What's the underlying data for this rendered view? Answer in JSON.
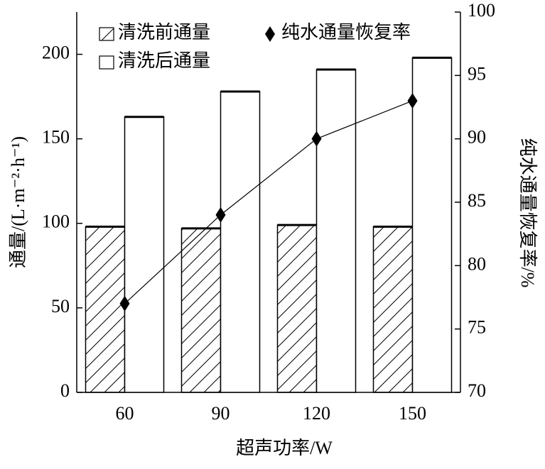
{
  "chart_data": {
    "type": "bar",
    "x_label": "超声功率/W",
    "y_label": "通量/(L·m⁻²·h⁻¹)",
    "y2_label": "纯水通量恢复率/%",
    "categories": [
      "60",
      "90",
      "120",
      "150"
    ],
    "series": [
      {
        "name": "清洗前通量",
        "type": "bar",
        "color": "#000000",
        "hatch": true,
        "values": [
          98,
          97,
          99,
          98
        ]
      },
      {
        "name": "清洗后通量",
        "type": "bar",
        "color": "#000000",
        "hatch": false,
        "values": [
          163,
          178,
          191,
          198
        ]
      },
      {
        "name": "纯水通量恢复率",
        "type": "line",
        "axis": "y2",
        "color": "#000000",
        "values": [
          77,
          84,
          90,
          93
        ]
      }
    ],
    "ylim": [
      0,
      225
    ],
    "yticks": [
      0,
      50,
      100,
      150,
      200
    ],
    "y2lim": [
      70,
      100
    ],
    "y2ticks": [
      70,
      75,
      80,
      85,
      90,
      95,
      100
    ],
    "grid": false
  }
}
